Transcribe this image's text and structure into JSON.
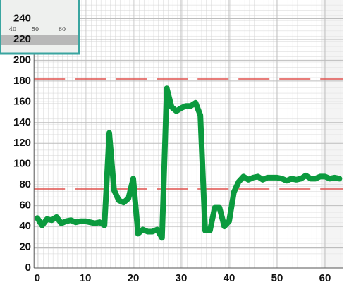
{
  "chart_data": {
    "type": "line",
    "x": [
      0,
      1,
      2,
      3,
      4,
      5,
      6,
      7,
      8,
      9,
      10,
      11,
      12,
      13,
      14,
      15,
      16,
      17,
      18,
      19,
      20,
      21,
      22,
      23,
      24,
      25,
      26,
      27,
      28,
      29,
      30,
      31,
      32,
      33,
      34,
      35,
      36,
      37,
      38,
      39,
      40,
      41,
      42,
      43,
      44,
      45,
      46,
      47,
      48,
      49,
      50,
      51,
      52,
      53,
      54,
      55,
      56,
      57,
      58,
      59,
      60,
      61,
      62,
      63
    ],
    "series": [
      {
        "color": "#0b9a3e",
        "values": [
          48,
          41,
          47,
          46,
          49,
          43,
          45,
          46,
          44,
          45,
          45,
          44,
          43,
          44,
          41,
          130,
          75,
          65,
          63,
          67,
          86,
          33,
          37,
          35,
          35,
          37,
          29,
          173,
          155,
          151,
          154,
          156,
          156,
          159,
          147,
          36,
          36,
          58,
          58,
          40,
          45,
          73,
          83,
          88,
          85,
          87,
          88,
          85,
          87,
          87,
          87,
          86,
          84,
          86,
          85,
          86,
          89,
          86,
          86,
          88,
          88,
          86,
          87,
          86
        ]
      }
    ],
    "xlim": [
      -0.7,
      63.8
    ],
    "ylim": [
      0,
      258
    ],
    "xticks": [
      0,
      10,
      20,
      30,
      40,
      50,
      60
    ],
    "yticks": [
      0,
      20,
      40,
      60,
      80,
      100,
      120,
      140,
      160,
      180,
      200,
      220,
      240
    ],
    "reference_lines": [
      {
        "value": 182,
        "color": "#e0524f"
      },
      {
        "value": 76,
        "color": "#e0524f"
      }
    ],
    "grid": true,
    "inset": {
      "labels": [
        "40",
        "50",
        "60"
      ]
    }
  }
}
